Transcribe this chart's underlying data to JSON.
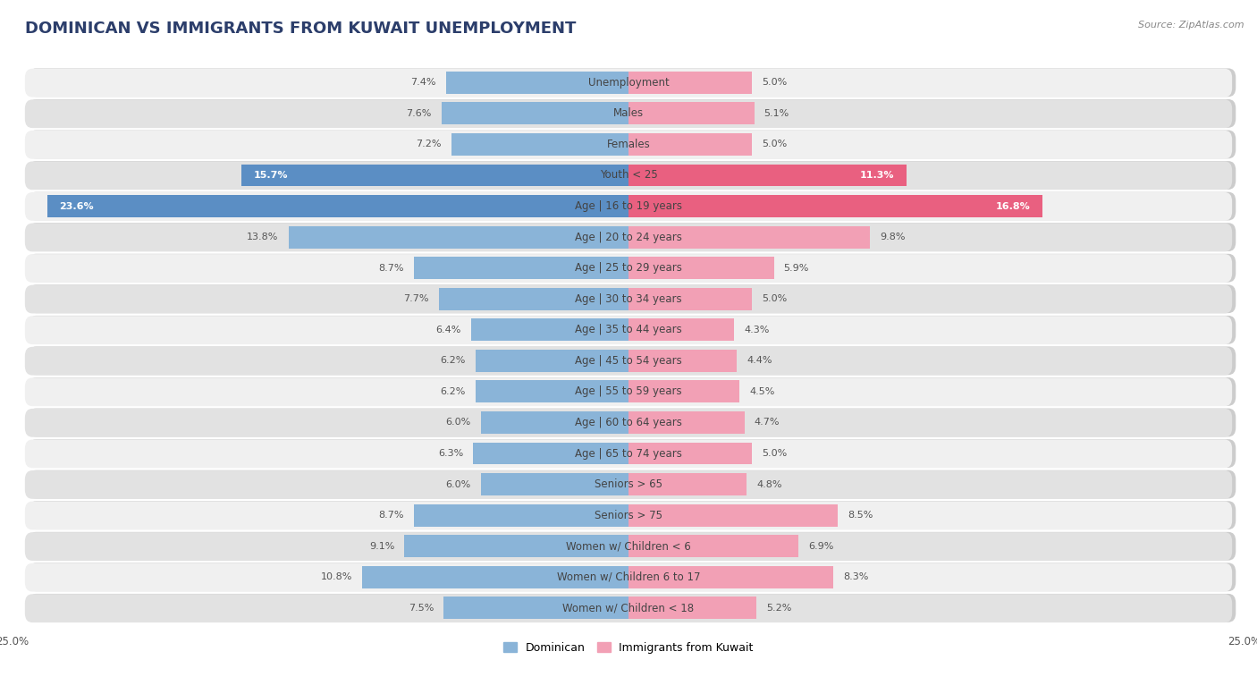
{
  "title": "DOMINICAN VS IMMIGRANTS FROM KUWAIT UNEMPLOYMENT",
  "source": "Source: ZipAtlas.com",
  "categories": [
    "Unemployment",
    "Males",
    "Females",
    "Youth < 25",
    "Age | 16 to 19 years",
    "Age | 20 to 24 years",
    "Age | 25 to 29 years",
    "Age | 30 to 34 years",
    "Age | 35 to 44 years",
    "Age | 45 to 54 years",
    "Age | 55 to 59 years",
    "Age | 60 to 64 years",
    "Age | 65 to 74 years",
    "Seniors > 65",
    "Seniors > 75",
    "Women w/ Children < 6",
    "Women w/ Children 6 to 17",
    "Women w/ Children < 18"
  ],
  "dominican": [
    7.4,
    7.6,
    7.2,
    15.7,
    23.6,
    13.8,
    8.7,
    7.7,
    6.4,
    6.2,
    6.2,
    6.0,
    6.3,
    6.0,
    8.7,
    9.1,
    10.8,
    7.5
  ],
  "kuwait": [
    5.0,
    5.1,
    5.0,
    11.3,
    16.8,
    9.8,
    5.9,
    5.0,
    4.3,
    4.4,
    4.5,
    4.7,
    5.0,
    4.8,
    8.5,
    6.9,
    8.3,
    5.2
  ],
  "dominican_color": "#8ab4d8",
  "kuwait_color": "#f2a0b5",
  "dominican_highlight_color": "#5b8ec4",
  "kuwait_highlight_color": "#e96080",
  "highlight_rows": [
    3,
    4
  ],
  "xlim": 25.0,
  "legend_dominican": "Dominican",
  "legend_kuwait": "Immigrants from Kuwait",
  "bg_color": "#ffffff",
  "row_bg_light": "#f0f0f0",
  "row_bg_dark": "#e2e2e2",
  "bar_height": 0.72,
  "font_size_title": 13,
  "font_size_labels": 8.5,
  "font_size_values": 8.0,
  "font_size_legend": 9,
  "font_size_axis": 8.5
}
